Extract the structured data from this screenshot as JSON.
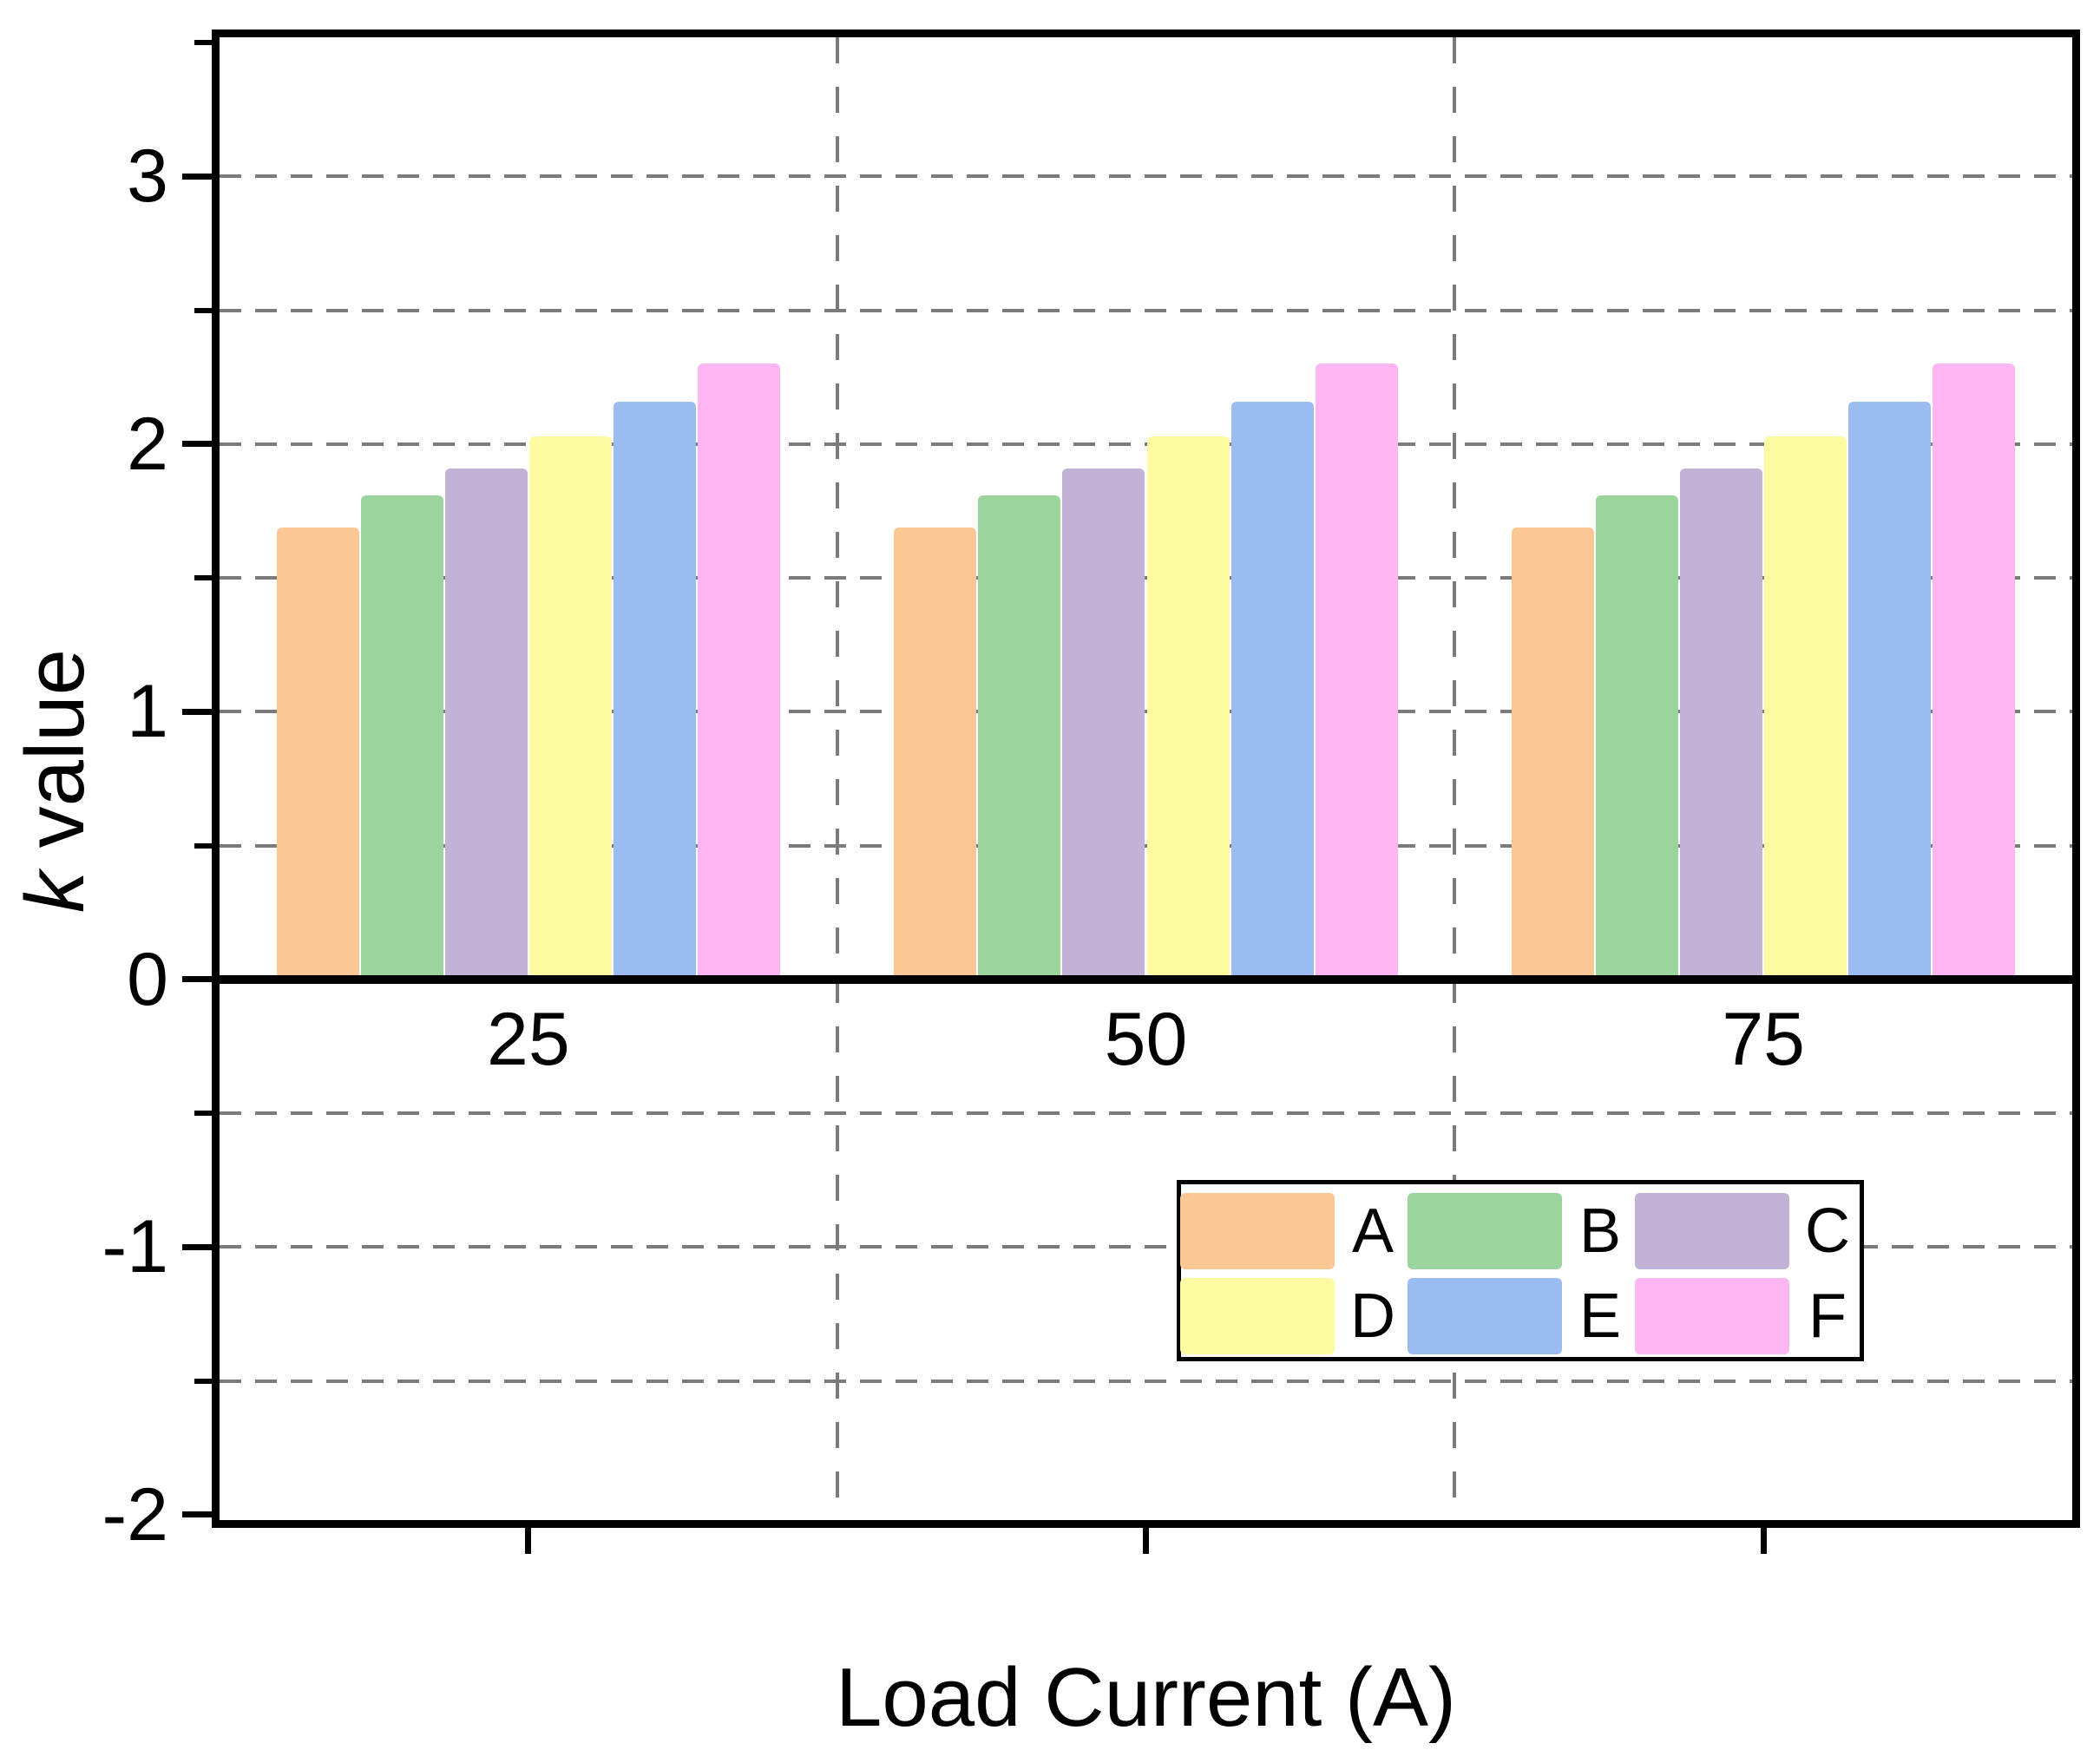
{
  "figure": {
    "xlabel": "Load Current (A)",
    "ylabel_italic": "k",
    "ylabel_rest": " value"
  },
  "chart_data": {
    "type": "bar",
    "title": "",
    "xlabel": "Load Current (A)",
    "ylabel": "k value",
    "ylabel_note": "the letter k is italic",
    "categories": [
      "25",
      "50",
      "75"
    ],
    "series": [
      {
        "name": "A",
        "color": "#FAC795",
        "values": [
          1.69,
          1.69,
          1.69
        ]
      },
      {
        "name": "B",
        "color": "#9BD49D",
        "values": [
          1.81,
          1.81,
          1.81
        ]
      },
      {
        "name": "C",
        "color": "#C1B2D6",
        "values": [
          1.91,
          1.91,
          1.91
        ]
      },
      {
        "name": "D",
        "color": "#FEFCA2",
        "values": [
          2.03,
          2.03,
          2.03
        ]
      },
      {
        "name": "E",
        "color": "#9BBCF0",
        "values": [
          2.16,
          2.16,
          2.16
        ]
      },
      {
        "name": "F",
        "color": "#FDB6F2",
        "values": [
          2.3,
          2.3,
          2.3
        ]
      }
    ],
    "ylim": [
      -2,
      3.5
    ],
    "yticks": [
      {
        "value": 3,
        "label": "3"
      },
      {
        "value": 2,
        "label": "2"
      },
      {
        "value": 1,
        "label": "1"
      },
      {
        "value": 0,
        "label": "0"
      },
      {
        "value": -1,
        "label": "-1"
      },
      {
        "value": -2,
        "label": "-2"
      }
    ],
    "ytick_minor_values": [
      3.5,
      2.5,
      1.5,
      0.5,
      -0.5,
      -1.5
    ],
    "grid": {
      "horizontal_values": [
        3,
        2.5,
        2,
        1.5,
        1,
        0.5,
        -0.5,
        -1,
        -1.5
      ],
      "vertical_fractions": [
        0.33333,
        0.66667
      ],
      "style": "dashed",
      "color": "#7B7B7B"
    },
    "legend": {
      "labels": [
        "A",
        "B",
        "C",
        "D",
        "E",
        "F"
      ],
      "columns": 3,
      "location": "inside-lower-right"
    },
    "axis_color": "#000000",
    "background": "#FFFFFF",
    "baseline": 0,
    "bars_start_at_zero_line": true
  }
}
